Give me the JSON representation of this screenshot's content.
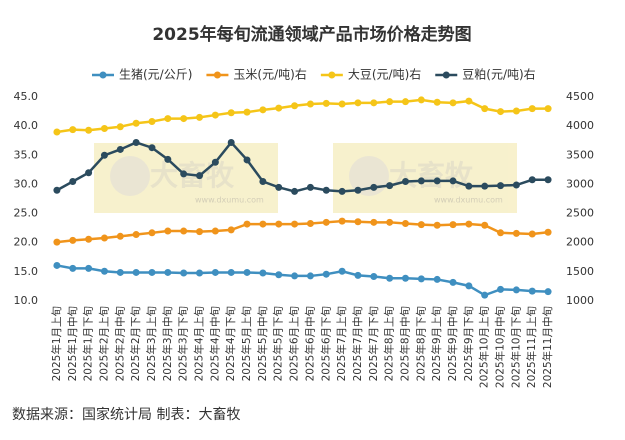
{
  "chart_data": {
    "type": "line",
    "title": "2025年每旬流通领域产品市场价格走势图",
    "footer": "数据来源：国家统计局 制表：大畜牧",
    "watermark": "大畜牧",
    "watermark_url": "www.dxumu.com",
    "categories": [
      "2025年1月上旬",
      "2025年1月中旬",
      "2025年1月下旬",
      "2025年2月上旬",
      "2025年2月中旬",
      "2025年2月下旬",
      "2025年3月上旬",
      "2025年3月中旬",
      "2025年3月下旬",
      "2025年4月上旬",
      "2025年4月中旬",
      "2025年4月下旬",
      "2025年5月上旬",
      "2025年5月中旬",
      "2025年5月下旬",
      "2025年6月上旬",
      "2025年6月中旬",
      "2025年6月下旬",
      "2025年7月上旬",
      "2025年7月中旬",
      "2025年7月下旬",
      "2025年8月上旬",
      "2025年8月中旬",
      "2025年8月下旬",
      "2025年9月上旬",
      "2025年9月中旬",
      "2025年9月下旬",
      "2025年10月上旬",
      "2025年10月中旬",
      "2025年10月下旬",
      "2025年11月上旬",
      "2025年11月中旬"
    ],
    "series": [
      {
        "name": "生猪(元/公斤)",
        "color": "#3f8fc0",
        "axis": "y",
        "values": [
          16.1,
          15.6,
          15.6,
          15.1,
          14.9,
          14.9,
          14.9,
          14.9,
          14.8,
          14.8,
          14.9,
          14.9,
          14.9,
          14.8,
          14.5,
          14.3,
          14.3,
          14.6,
          15.1,
          14.4,
          14.2,
          13.9,
          13.9,
          13.8,
          13.7,
          13.2,
          12.6,
          11.0,
          12.0,
          11.9,
          11.7,
          11.6
        ]
      },
      {
        "name": "玉米(元/吨)右",
        "color": "#f0941b",
        "axis": "y2",
        "values": [
          2010,
          2040,
          2060,
          2080,
          2110,
          2140,
          2170,
          2200,
          2200,
          2190,
          2200,
          2220,
          2320,
          2320,
          2320,
          2320,
          2330,
          2350,
          2370,
          2360,
          2350,
          2350,
          2330,
          2310,
          2300,
          2310,
          2320,
          2300,
          2170,
          2160,
          2150,
          2180
        ]
      },
      {
        "name": "大豆(元/吨)右",
        "color": "#f5c518",
        "axis": "y2",
        "values": [
          3900,
          3940,
          3930,
          3960,
          3990,
          4050,
          4080,
          4130,
          4130,
          4150,
          4190,
          4230,
          4240,
          4280,
          4310,
          4350,
          4380,
          4390,
          4380,
          4400,
          4400,
          4420,
          4420,
          4450,
          4410,
          4400,
          4430,
          4300,
          4250,
          4260,
          4300,
          4300
        ]
      },
      {
        "name": "豆粕(元/吨)右",
        "color": "#2b4b5e",
        "axis": "y2",
        "values": [
          2900,
          3050,
          3200,
          3500,
          3600,
          3720,
          3630,
          3430,
          3180,
          3150,
          3380,
          3720,
          3420,
          3050,
          2950,
          2880,
          2950,
          2900,
          2880,
          2900,
          2950,
          2980,
          3050,
          3060,
          3060,
          3060,
          2970,
          2970,
          2980,
          2990,
          3080,
          3080
        ]
      }
    ],
    "ylim": [
      10,
      45
    ],
    "yticks": [
      {
        "value": 10,
        "label": "10.0"
      },
      {
        "value": 15,
        "label": "15.0"
      },
      {
        "value": 20,
        "label": "20.0"
      },
      {
        "value": 25,
        "label": "25.0"
      },
      {
        "value": 30,
        "label": "30.0"
      },
      {
        "value": 35,
        "label": "35.0"
      },
      {
        "value": 40,
        "label": "40.0"
      },
      {
        "value": 45,
        "label": "45.0"
      }
    ],
    "y2lim": [
      1000,
      4500
    ],
    "y2ticks": [
      1000,
      1500,
      2000,
      2500,
      3000,
      3500,
      4000,
      4500
    ],
    "grid": false,
    "legend": "top"
  }
}
